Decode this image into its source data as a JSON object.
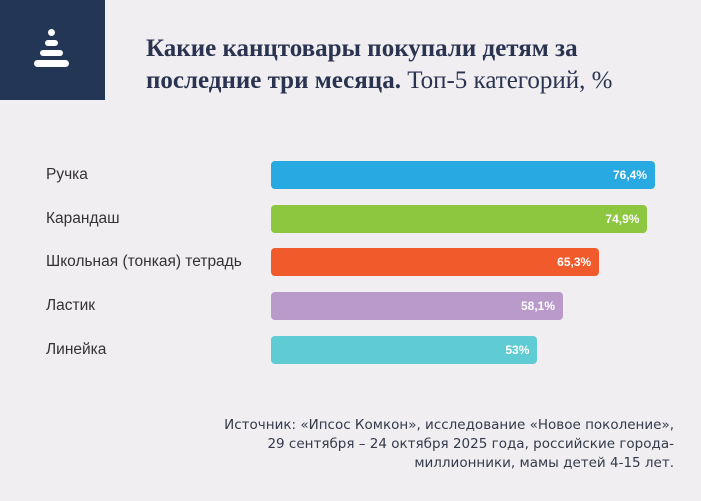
{
  "logo": {
    "icon": "pyramid-toy-icon",
    "color": "#243656"
  },
  "title": {
    "bold": "Какие канцтовары покупали детям за последние три месяца.",
    "normal": " Топ-5 категорий, %"
  },
  "chart_data": {
    "type": "bar",
    "orientation": "horizontal",
    "categories": [
      "Ручка",
      "Карандаш",
      "Школьная (тонкая) тетрадь",
      "Ластик",
      "Линейка"
    ],
    "values": [
      76.4,
      74.9,
      65.3,
      58.1,
      53
    ],
    "data_labels": [
      "76,4%",
      "74,9%",
      "65,3%",
      "58,1%",
      "53%"
    ],
    "colors": [
      "#29a9e1",
      "#8dc63f",
      "#f15a2b",
      "#b99aca",
      "#5fcbd2"
    ],
    "xlim": [
      0,
      100
    ],
    "grid": false,
    "legend": "none"
  },
  "source": {
    "lines": [
      "Источник: «Ипсос Комкон», исследование «Новое поколение»,",
      "29 сентября – 24 октября 2025 года, российские города-",
      "миллионники, мамы детей 4-15 лет."
    ]
  }
}
